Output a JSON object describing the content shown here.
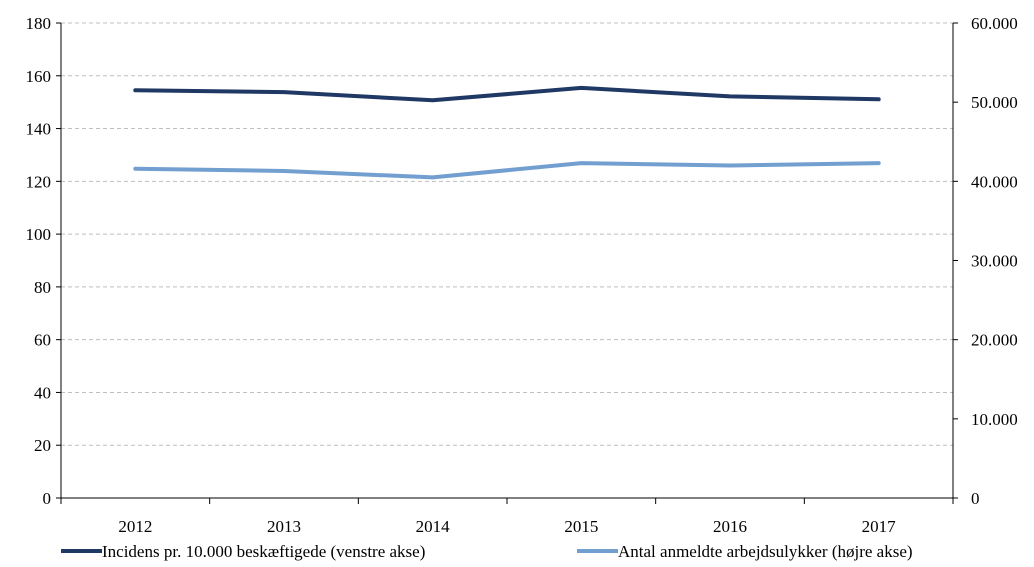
{
  "chart_data": {
    "type": "line",
    "categories": [
      "2012",
      "2013",
      "2014",
      "2015",
      "2016",
      "2017"
    ],
    "y_left": {
      "min": 0,
      "max": 180,
      "ticks": [
        0,
        20,
        40,
        60,
        80,
        100,
        120,
        140,
        160,
        180
      ],
      "tick_labels": [
        "0",
        "20",
        "40",
        "60",
        "80",
        "100",
        "120",
        "140",
        "160",
        "180"
      ]
    },
    "y_right": {
      "min": 0,
      "max": 60000,
      "ticks": [
        0,
        10000,
        20000,
        30000,
        40000,
        50000,
        60000
      ],
      "tick_labels": [
        "0",
        "10.000",
        "20.000",
        "30.000",
        "40.000",
        "50.000",
        "60.000"
      ]
    },
    "grid": "horizontal-dashed",
    "legend_position": "bottom",
    "series": [
      {
        "name": "Incidens pr. 10.000 beskæftigede (venstre akse)",
        "axis": "left",
        "color": "#1f3864",
        "values": [
          154.5,
          153.8,
          150.7,
          155.4,
          152.2,
          151.1
        ]
      },
      {
        "name": "Antal anmeldte arbejdsulykker (højre akse)",
        "axis": "right",
        "color": "#729fcf",
        "values": [
          41600,
          41300,
          40500,
          42300,
          42000,
          42300
        ]
      }
    ]
  }
}
